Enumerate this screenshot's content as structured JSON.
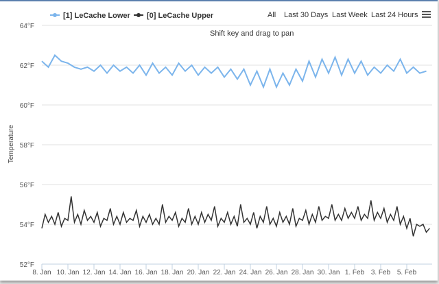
{
  "toolbar": {
    "hint": "Shift key and drag to pan",
    "ranges": [
      "All",
      "Last 30 Days",
      "Last Week",
      "Last 24 Hours"
    ],
    "menu_icon": "hamburger-menu-icon"
  },
  "chart_data": {
    "type": "line",
    "ylabel": "Temperature",
    "ylim": [
      52,
      64
    ],
    "yticks": [
      "52°F",
      "54°F",
      "56°F",
      "58°F",
      "60°F",
      "62°F",
      "64°F"
    ],
    "xticks": [
      "8. Jan",
      "10. Jan",
      "12. Jan",
      "14. Jan",
      "16. Jan",
      "18. Jan",
      "20. Jan",
      "22. Jan",
      "24. Jan",
      "26. Jan",
      "28. Jan",
      "30. Jan",
      "1. Feb",
      "3. Feb",
      "5. Feb"
    ],
    "grid": true,
    "legend": "top-left",
    "series": [
      {
        "name": "[1] LeCache Lower",
        "color": "#7cb5ec",
        "start": "8. Jan",
        "step_hours": 12,
        "values": [
          62.2,
          61.9,
          62.5,
          62.2,
          62.1,
          61.9,
          61.8,
          61.9,
          61.7,
          62.0,
          61.6,
          62.0,
          61.7,
          61.9,
          61.6,
          62.0,
          61.5,
          62.1,
          61.6,
          61.9,
          61.5,
          62.1,
          61.7,
          62.0,
          61.5,
          61.9,
          61.6,
          61.9,
          61.4,
          61.8,
          61.3,
          61.8,
          61.0,
          61.7,
          60.9,
          61.8,
          60.9,
          61.6,
          61.0,
          61.8,
          61.2,
          62.2,
          61.4,
          62.3,
          61.6,
          62.4,
          61.5,
          62.3,
          61.6,
          62.2,
          61.5,
          61.9,
          61.6,
          62.0,
          61.7,
          62.3,
          61.6,
          61.9,
          61.6,
          61.7
        ]
      },
      {
        "name": "[0] LeCache Upper",
        "color": "#333333",
        "start": "8. Jan",
        "step_hours": 6,
        "values": [
          53.8,
          54.5,
          54.1,
          54.4,
          54.0,
          54.6,
          53.9,
          54.3,
          54.2,
          55.4,
          54.1,
          54.5,
          54.0,
          54.7,
          54.2,
          54.4,
          54.1,
          54.6,
          53.9,
          54.3,
          54.2,
          54.8,
          54.0,
          54.4,
          54.0,
          54.6,
          54.1,
          54.3,
          54.2,
          54.7,
          53.9,
          54.4,
          54.1,
          54.5,
          54.0,
          54.3,
          54.0,
          55.0,
          54.1,
          54.4,
          54.2,
          54.6,
          53.9,
          54.3,
          54.1,
          54.8,
          54.0,
          54.4,
          54.0,
          54.6,
          54.1,
          54.5,
          54.2,
          54.9,
          53.9,
          54.3,
          54.1,
          54.6,
          54.0,
          54.4,
          53.9,
          55.0,
          54.1,
          54.3,
          54.0,
          54.6,
          53.8,
          54.4,
          54.1,
          54.9,
          54.0,
          54.3,
          53.9,
          54.6,
          54.1,
          54.4,
          54.0,
          54.8,
          53.9,
          54.3,
          54.2,
          54.7,
          54.0,
          54.5,
          54.1,
          54.9,
          54.2,
          54.4,
          54.3,
          55.0,
          54.2,
          54.5,
          54.2,
          54.8,
          54.3,
          54.6,
          54.3,
          54.9,
          54.2,
          54.5,
          54.3,
          55.2,
          54.2,
          54.6,
          54.3,
          54.8,
          54.1,
          54.5,
          54.2,
          54.9,
          54.0,
          54.4,
          53.8,
          54.3,
          53.4,
          54.0,
          53.9,
          54.0,
          53.6,
          53.8
        ]
      }
    ]
  }
}
